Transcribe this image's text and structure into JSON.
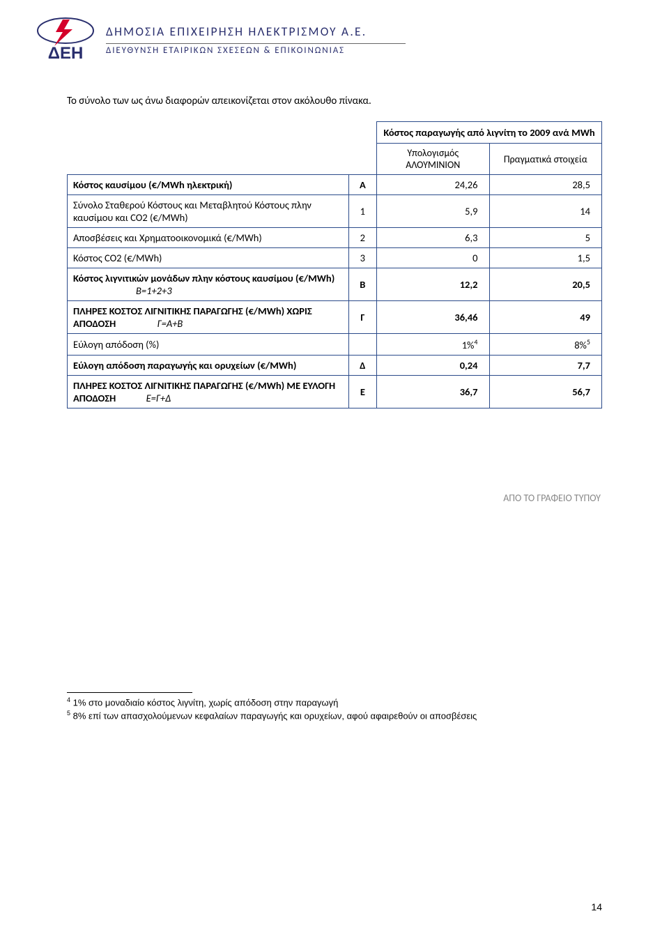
{
  "header": {
    "company_name": "ΔΗΜΟΣΙΑ ΕΠΙΧΕΙΡΗΣΗ ΗΛΕΚΤΡΙΣΜΟΥ Α.Ε.",
    "department": "ΔΙΕΥΘΥΝΣΗ ΕΤΑΙΡΙΚΩΝ ΣΧΕΣΕΩΝ & ΕΠΙΚΟΙΝΩΝΙΑΣ",
    "logo": {
      "bolt_color": "#d4002a",
      "text_color": "#2a2f6e",
      "greek": "ΔEH"
    }
  },
  "intro": "Το σύνολο των ως άνω διαφορών απεικονίζεται στον ακόλουθο πίνακα.",
  "table": {
    "super_header": "Κόστος παραγωγής από λιγνίτη το 2009 ανά MWh",
    "col1": "Υπολογισμός ΑΛΟΥΜΙΝΙΟΝ",
    "col2": "Πραγματικά στοιχεία",
    "border_color": "#2a4a8a",
    "rows": [
      {
        "desc": "Κόστος καυσίμου (€/MWh ηλεκτρική)",
        "idx": "Α",
        "v1": "24,26",
        "v2": "28,5",
        "bold_desc": true,
        "bold_idx": true
      },
      {
        "desc": "Σύνολο Σταθερού Κόστους και Μεταβλητού Κόστους πλην καυσίμου και CO2 (€/MWh)",
        "idx": "1",
        "v1": "5,9",
        "v2": "14"
      },
      {
        "desc": "Αποσβέσεις και Χρηματοοικονομικά (€/MWh)",
        "idx": "2",
        "v1": "6,3",
        "v2": "5"
      },
      {
        "desc": "Κόστος CO2 (€/MWh)",
        "idx": "3",
        "v1": "0",
        "v2": "1,5"
      },
      {
        "desc": "Κόστος λιγνιτικών μονάδων πλην κόστους καυσίμου (€/MWh)",
        "formula": "Β=1+2+3",
        "idx": "Β",
        "v1": "12,2",
        "v2": "20,5",
        "bold_all": true
      },
      {
        "desc": "ΠΛΗΡΕΣ ΚΟΣΤΟΣ ΛΙΓΝΙΤΙΚΗΣ ΠΑΡΑΓΩΓΗΣ (€/MWh) ΧΩΡΙΣ ΑΠΟΔΟΣΗ",
        "formula": "Γ=Α+Β",
        "idx": "Γ",
        "v1": "36,46",
        "v2": "49",
        "bold_all": true
      },
      {
        "desc": "Εύλογη απόδοση (%)",
        "idx": "",
        "v1": "1%",
        "v1_sup": "4",
        "v2": "8%",
        "v2_sup": "5"
      },
      {
        "desc": "Εύλογη απόδοση παραγωγής και ορυχείων (€/MWh)",
        "idx": "Δ",
        "v1": "0,24",
        "v2": "7,7",
        "bold_all": true
      },
      {
        "desc": "ΠΛΗΡΕΣ ΚΟΣΤΟΣ ΛΙΓΝΙΤΙΚΗΣ ΠΑΡΑΓΩΓΗΣ (€/MWh) ΜΕ ΕΥΛΟΓΗ ΑΠΟΔΟΣΗ",
        "formula": "Ε=Γ+Δ",
        "idx": "Ε",
        "v1": "36,7",
        "v2": "56,7",
        "bold_all": true
      }
    ]
  },
  "press_office": "ΑΠΟ ΤΟ ΓΡΑΦΕΙΟ ΤΥΠΟΥ",
  "footnotes": {
    "f4": "1% στο μοναδιαίο κόστος λιγνίτη, χωρίς απόδοση στην παραγωγή",
    "f5": "8% επί των απασχολούμενων κεφαλαίων παραγωγής και ορυχείων, αφού αφαιρεθούν οι αποσβέσεις"
  },
  "page_number": "14"
}
